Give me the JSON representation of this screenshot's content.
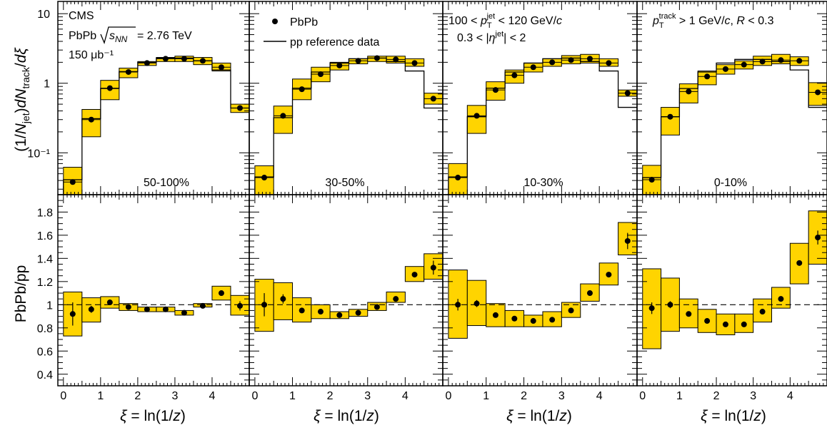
{
  "colors": {
    "band": "#ffd400",
    "frame": "#000000",
    "marker": "#000000"
  },
  "labels": {
    "experiment": "CMS",
    "energy_prefix": "PbPb",
    "energy_suffix": "= 2.76 TeV",
    "lumi": "150 μb⁻¹",
    "legend_pbpb": "PbPb",
    "legend_pp": "pp reference data",
    "jet_cut_line1": "100 < p_T^jet < 120 GeV/c",
    "jet_cut_line2": "0.3 < |η^jet| < 2",
    "track_cut": "p_T^track > 1 GeV/c, R < 0.3",
    "ylabel_top": "(1/N_jet) dN_track/dξ",
    "ylabel_bottom": "PbPb/pp",
    "xlabel": "ξ = ln(1/z)"
  },
  "chart_data": {
    "type": "scatter",
    "x_bins": [
      0,
      0.5,
      1,
      1.5,
      2,
      2.5,
      3,
      3.5,
      4,
      4.5,
      5
    ],
    "xlim": [
      -0.15,
      5
    ],
    "x_ticks": [
      0,
      1,
      2,
      3,
      4
    ],
    "top": {
      "yscale": "log",
      "ylim": [
        0.025,
        15
      ],
      "y_ticks": [
        {
          "v": 0.1,
          "t": "10⁻¹"
        },
        {
          "v": 1,
          "t": "1"
        },
        {
          "v": 10,
          "t": "10"
        }
      ]
    },
    "bottom": {
      "ylim": [
        0.3,
        1.95
      ],
      "y_ticks": [
        0.4,
        0.6,
        0.8,
        1,
        1.2,
        1.4,
        1.6,
        1.8
      ],
      "reference_line": 1
    },
    "panels": [
      {
        "centrality": "50-100%",
        "dist": {
          "values": [
            0.038,
            0.3,
            0.85,
            1.45,
            1.95,
            2.25,
            2.25,
            2.1,
            1.7,
            0.44
          ],
          "band_low": [
            0.024,
            0.17,
            0.58,
            1.2,
            1.8,
            2.05,
            2.05,
            1.85,
            1.5,
            0.38
          ],
          "band_high": [
            0.062,
            0.42,
            1.1,
            1.65,
            2.05,
            2.35,
            2.45,
            2.35,
            1.95,
            0.5
          ],
          "pp_reference": [
            0.041,
            0.31,
            0.84,
            1.47,
            2.0,
            2.3,
            2.3,
            2.1,
            1.55,
            0.44
          ]
        },
        "ratio": {
          "values": [
            0.92,
            0.96,
            1.02,
            0.98,
            0.96,
            0.96,
            0.93,
            0.99,
            1.1,
            0.99
          ],
          "err": [
            0.1,
            0.03,
            0.02,
            0.01,
            0.01,
            0.01,
            0.01,
            0.01,
            0.02,
            0.04
          ],
          "band_low": [
            0.73,
            0.85,
            0.97,
            0.95,
            0.94,
            0.94,
            0.91,
            0.98,
            1.04,
            0.91
          ],
          "band_high": [
            1.11,
            1.06,
            1.07,
            1.01,
            0.98,
            0.98,
            0.95,
            1.01,
            1.16,
            1.08
          ]
        }
      },
      {
        "centrality": "30-50%",
        "dist": {
          "values": [
            0.044,
            0.34,
            0.82,
            1.35,
            1.8,
            2.1,
            2.3,
            2.2,
            1.95,
            0.6
          ],
          "band_low": [
            0.025,
            0.19,
            0.58,
            1.05,
            1.55,
            1.9,
            2.05,
            1.95,
            1.75,
            0.5
          ],
          "band_high": [
            0.065,
            0.47,
            1.15,
            1.7,
            2.0,
            2.25,
            2.45,
            2.45,
            2.25,
            0.72
          ],
          "pp_reference": [
            0.045,
            0.32,
            0.85,
            1.45,
            1.95,
            2.25,
            2.3,
            2.05,
            1.5,
            0.44
          ]
        },
        "ratio": {
          "values": [
            1.0,
            1.05,
            0.95,
            0.94,
            0.91,
            0.93,
            0.98,
            1.05,
            1.26,
            1.32
          ],
          "err": [
            0.1,
            0.04,
            0.02,
            0.01,
            0.01,
            0.01,
            0.01,
            0.01,
            0.02,
            0.06
          ],
          "band_low": [
            0.77,
            0.87,
            0.85,
            0.88,
            0.88,
            0.9,
            0.95,
            1.02,
            1.2,
            1.22
          ],
          "band_high": [
            1.22,
            1.19,
            1.06,
            1.0,
            0.94,
            0.96,
            1.02,
            1.11,
            1.33,
            1.44
          ]
        }
      },
      {
        "centrality": "10-30%",
        "dist": {
          "values": [
            0.044,
            0.34,
            0.8,
            1.3,
            1.7,
            2.0,
            2.15,
            2.25,
            1.95,
            0.72
          ],
          "band_low": [
            0.025,
            0.19,
            0.57,
            1.0,
            1.45,
            1.75,
            1.9,
            1.95,
            1.75,
            0.65
          ],
          "band_high": [
            0.07,
            0.48,
            1.05,
            1.55,
            1.95,
            2.25,
            2.5,
            2.6,
            2.25,
            0.8
          ],
          "pp_reference": [
            0.045,
            0.33,
            0.85,
            1.45,
            1.95,
            2.25,
            2.3,
            2.05,
            1.5,
            0.45
          ]
        },
        "ratio": {
          "values": [
            1.0,
            1.01,
            0.91,
            0.88,
            0.86,
            0.87,
            0.95,
            1.1,
            1.26,
            1.55
          ],
          "err": [
            0.05,
            0.03,
            0.02,
            0.01,
            0.01,
            0.01,
            0.01,
            0.01,
            0.02,
            0.07
          ],
          "band_low": [
            0.71,
            0.82,
            0.81,
            0.81,
            0.81,
            0.81,
            0.89,
            1.03,
            1.17,
            1.43
          ],
          "band_high": [
            1.3,
            1.21,
            1.01,
            0.95,
            0.91,
            0.94,
            1.02,
            1.18,
            1.36,
            1.71
          ]
        }
      },
      {
        "centrality": "0-10%",
        "dist": {
          "values": [
            0.041,
            0.33,
            0.76,
            1.25,
            1.6,
            1.85,
            2.05,
            2.15,
            2.1,
            0.74
          ],
          "band_low": [
            0.025,
            0.18,
            0.52,
            0.95,
            1.35,
            1.6,
            1.8,
            1.9,
            1.8,
            0.48
          ],
          "band_high": [
            0.066,
            0.45,
            0.98,
            1.5,
            1.85,
            2.1,
            2.45,
            2.6,
            2.4,
            1.02
          ],
          "pp_reference": [
            0.044,
            0.33,
            0.84,
            1.45,
            1.95,
            2.2,
            2.2,
            2.05,
            1.55,
            0.45
          ]
        },
        "ratio": {
          "values": [
            0.97,
            1.0,
            0.92,
            0.86,
            0.83,
            0.83,
            0.94,
            1.05,
            1.36,
            1.58
          ],
          "err": [
            0.05,
            0.03,
            0.02,
            0.01,
            0.01,
            0.01,
            0.01,
            0.01,
            0.02,
            0.06
          ],
          "band_low": [
            0.62,
            0.77,
            0.8,
            0.76,
            0.74,
            0.76,
            0.85,
            0.97,
            1.18,
            1.35
          ],
          "band_high": [
            1.31,
            1.23,
            1.05,
            0.96,
            0.92,
            0.92,
            1.05,
            1.15,
            1.53,
            1.81
          ]
        }
      }
    ]
  }
}
